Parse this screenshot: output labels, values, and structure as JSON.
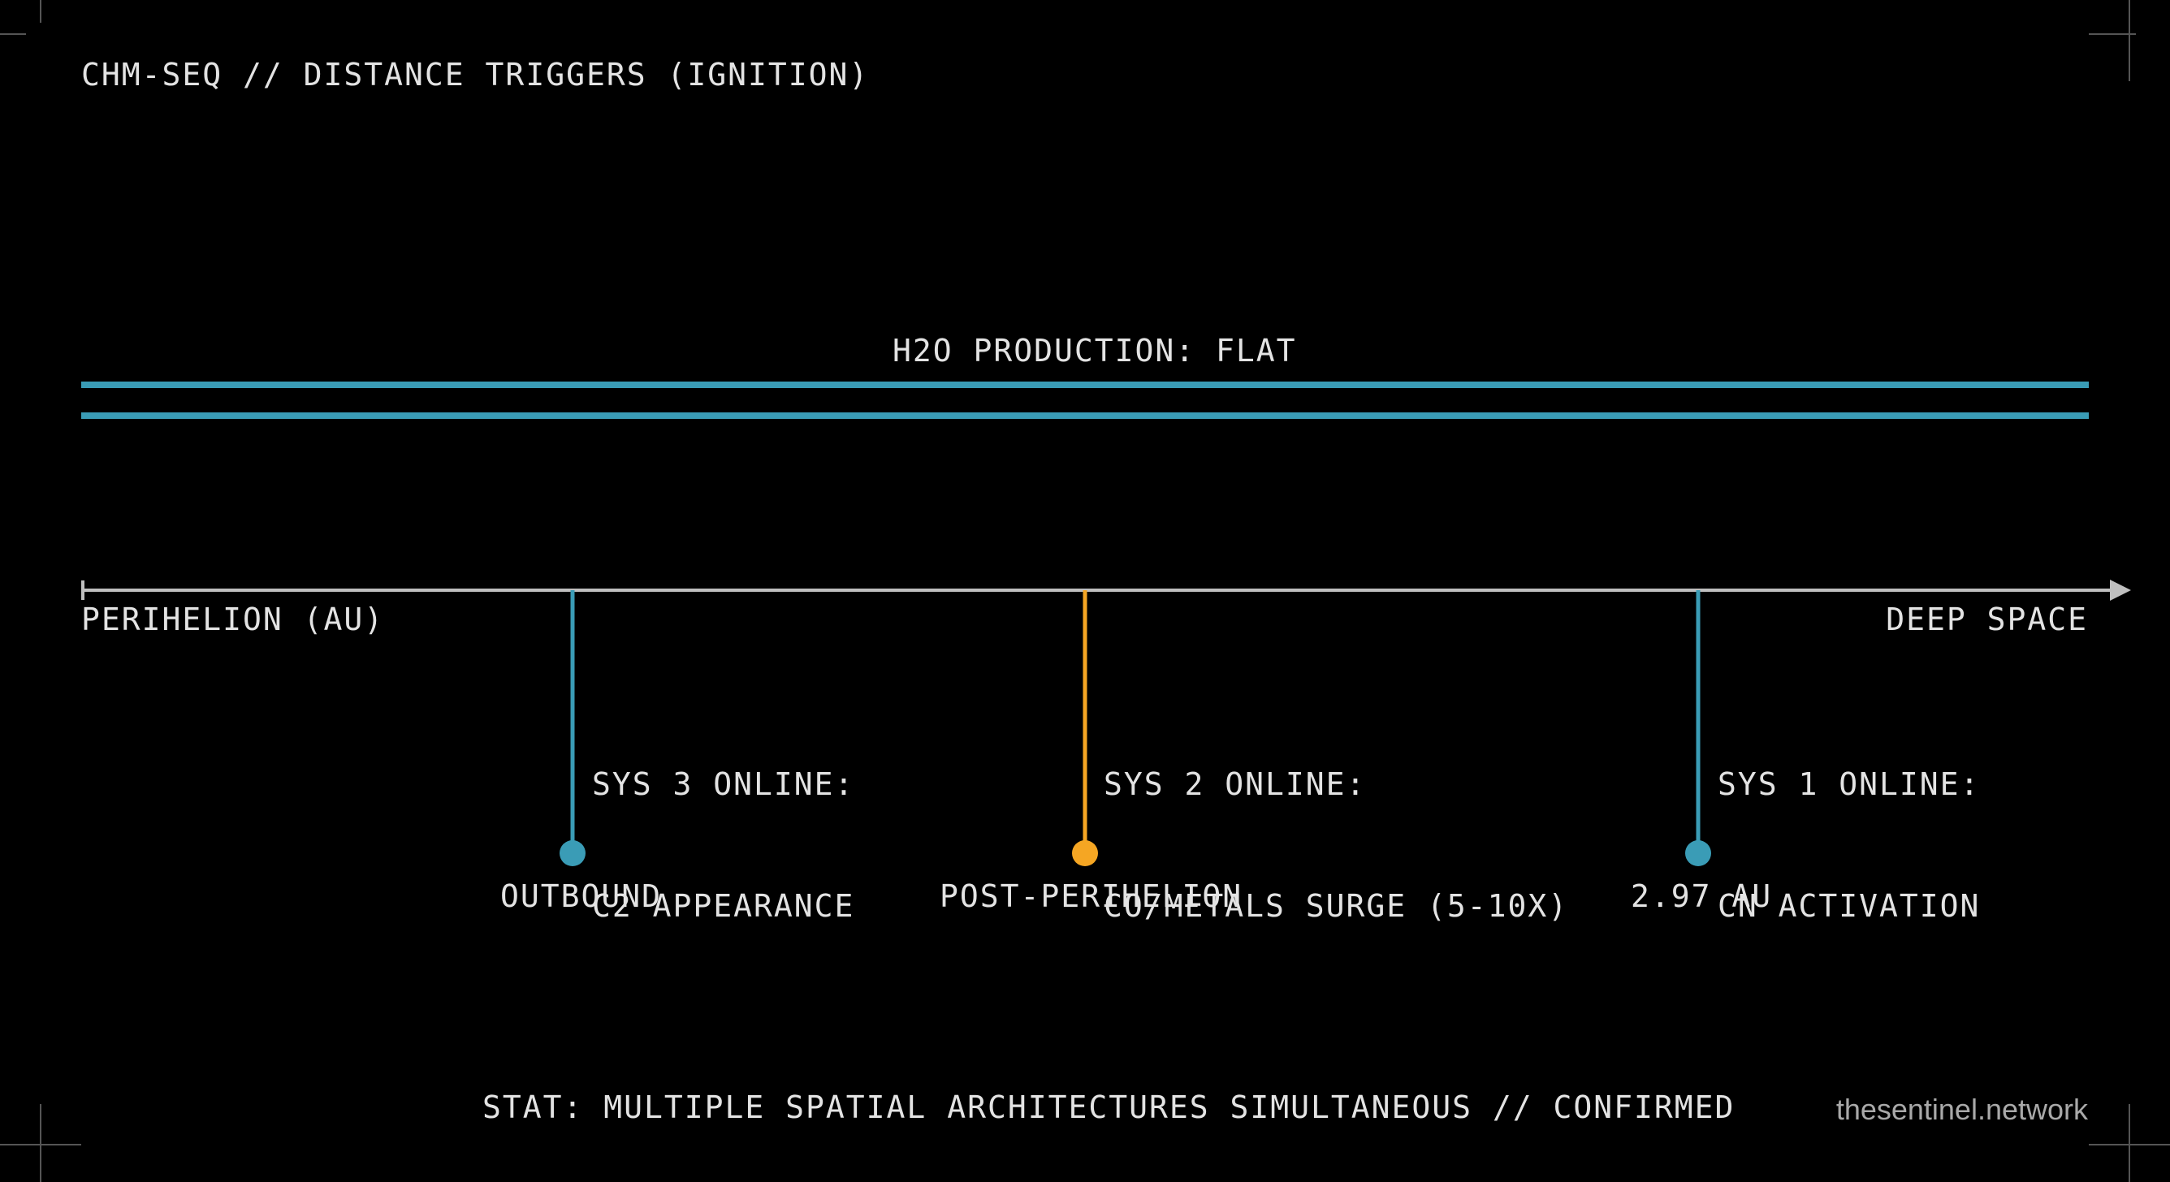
{
  "header": {
    "title": "CHM-SEQ // DISTANCE TRIGGERS (IGNITION)"
  },
  "h2o": {
    "label": "H2O PRODUCTION: FLAT"
  },
  "axis": {
    "left_label": "PERIHELION (AU)",
    "right_label": "DEEP SPACE"
  },
  "events": [
    {
      "system": "SYS 3 ONLINE:",
      "description": "C2 APPEARANCE",
      "name": "OUTBOUND",
      "color": "#3a9cb6"
    },
    {
      "system": "SYS 2 ONLINE:",
      "description": "CO/METALS SURGE (5-10X)",
      "name": "POST-PERIHELION",
      "color": "#f5a623"
    },
    {
      "system": "SYS 1 ONLINE:",
      "description": "CN ACTIVATION",
      "name": "2.97 AU",
      "color": "#3a9cb6"
    }
  ],
  "footer": {
    "status": "STAT: MULTIPLE SPATIAL ARCHITECTURES SIMULTANEOUS // CONFIRMED",
    "brand": "thesentinel.network"
  },
  "colors": {
    "background": "#000000",
    "h2o_line": "#3a9cb6",
    "axis": "#bfbfbf",
    "text": "#e3e3e3"
  }
}
